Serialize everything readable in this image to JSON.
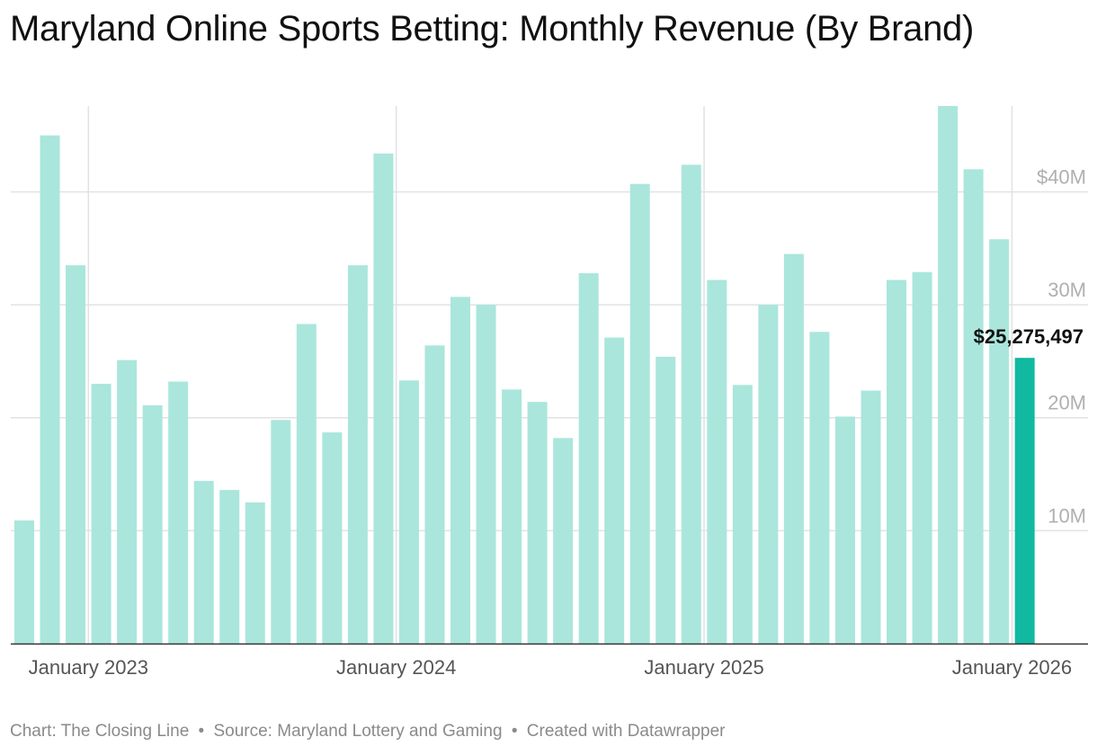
{
  "title": "Maryland Online Sports Betting: Monthly Revenue (By Brand)",
  "footer": {
    "chart_credit": "Chart: The Closing Line",
    "source": "Source: Maryland Lottery and Gaming",
    "created_with": "Created with Datawrapper",
    "separator": "•"
  },
  "colors": {
    "bar": "#aae6dc",
    "highlight": "#10b9a0",
    "grid": "#e2e2e2",
    "axis": "#333333",
    "tick_text": "#b0b0b0",
    "xtick_text": "#555555"
  },
  "chart_data": {
    "type": "bar",
    "title": "Maryland Online Sports Betting: Monthly Revenue (By Brand)",
    "xlabel": "",
    "ylabel": "",
    "ylim": [
      0,
      47.6
    ],
    "units": "millions USD",
    "y_ticks": [
      {
        "value": 10,
        "label": "10M"
      },
      {
        "value": 20,
        "label": "20M"
      },
      {
        "value": 30,
        "label": "30M"
      },
      {
        "value": 40,
        "label": "$40M"
      }
    ],
    "x_ticks": [
      {
        "index": 2.5,
        "label": "January 2023"
      },
      {
        "index": 14.5,
        "label": "January 2024"
      },
      {
        "index": 26.5,
        "label": "January 2025"
      },
      {
        "index": 38.5,
        "label": "January 2026"
      }
    ],
    "values": [
      10.9,
      45.0,
      33.5,
      23.0,
      25.1,
      21.1,
      23.2,
      14.4,
      13.6,
      12.5,
      19.8,
      28.3,
      18.7,
      33.5,
      43.4,
      23.3,
      26.4,
      30.7,
      30.0,
      22.5,
      21.4,
      18.2,
      32.8,
      27.1,
      40.7,
      25.4,
      42.4,
      32.2,
      22.9,
      30.0,
      34.5,
      27.6,
      20.1,
      22.4,
      32.2,
      32.9,
      47.6,
      42.0,
      35.8,
      25.3
    ],
    "highlight_index": 39,
    "highlight_label": "$25,275,497"
  }
}
